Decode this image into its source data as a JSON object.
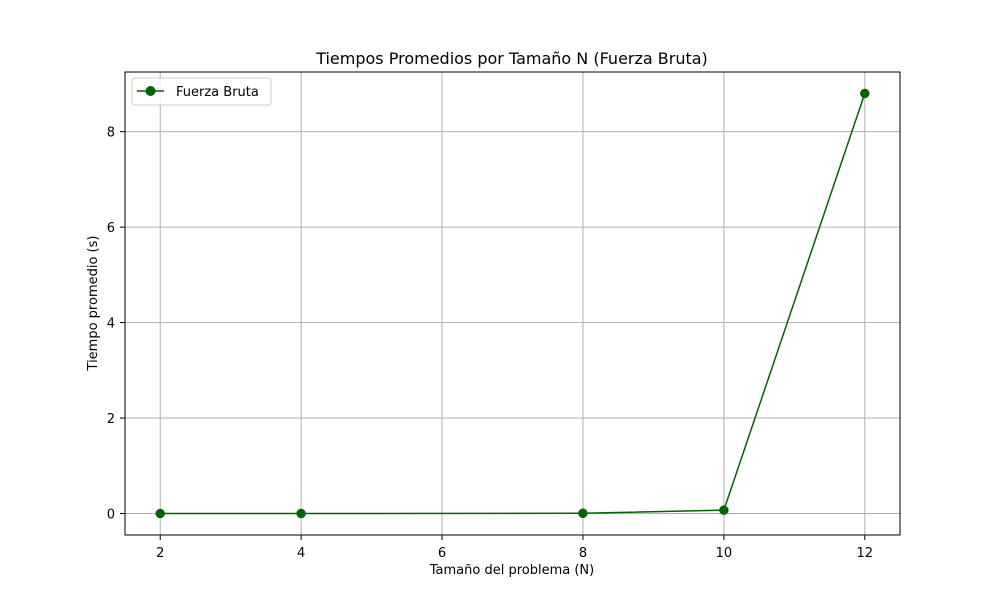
{
  "chart_data": {
    "type": "line",
    "title": "Tiempos Promedios por Tamaño N (Fuerza Bruta)",
    "xlabel": "Tamaño del problema (N)",
    "ylabel": "Tiempo promedio (s)",
    "xlim": [
      1.5,
      12.5
    ],
    "ylim": [
      -0.45,
      9.25
    ],
    "xticks": [
      2,
      4,
      6,
      8,
      10,
      12
    ],
    "yticks": [
      0,
      2,
      4,
      6,
      8
    ],
    "grid": true,
    "legend_position": "top-left",
    "series": [
      {
        "name": "Fuerza Bruta",
        "color": "#006400",
        "marker": "circle",
        "x": [
          2,
          4,
          8,
          10,
          12
        ],
        "y": [
          0.0,
          0.0,
          0.005,
          0.07,
          8.8
        ]
      }
    ]
  }
}
